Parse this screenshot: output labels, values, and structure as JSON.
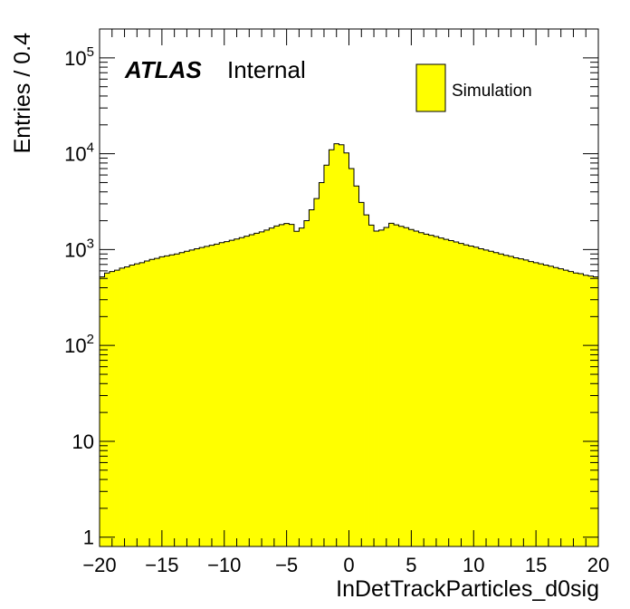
{
  "chart_data": {
    "type": "histogram",
    "title": "",
    "xlabel": "InDetTrackParticles_d0sig",
    "ylabel": "Entries / 0.4",
    "xlim": [
      -20,
      20
    ],
    "ylim": [
      0.8,
      200000
    ],
    "y_scale": "log",
    "bin_width": 0.4,
    "x_ticks": [
      -20,
      -15,
      -10,
      -5,
      0,
      5,
      10,
      15,
      20
    ],
    "x_tick_labels": [
      "−20",
      "−15",
      "−10",
      "−5",
      "0",
      "5",
      "10",
      "15",
      "20"
    ],
    "y_ticks": [
      {
        "value": 1,
        "base": "1",
        "exp": ""
      },
      {
        "value": 10,
        "base": "10",
        "exp": ""
      },
      {
        "value": 100,
        "base": "10",
        "exp": "2"
      },
      {
        "value": 1000,
        "base": "10",
        "exp": "3"
      },
      {
        "value": 10000,
        "base": "10",
        "exp": "4"
      },
      {
        "value": 100000,
        "base": "10",
        "exp": "5"
      }
    ],
    "fill_color": "#ffff00",
    "line_color": "#000000",
    "legend": {
      "position": "top-right",
      "entries": [
        "Simulation"
      ]
    },
    "label": {
      "brand": "ATLAS",
      "status": "Internal"
    },
    "bin_contents": [
      520,
      570,
      590,
      610,
      640,
      660,
      690,
      710,
      730,
      760,
      790,
      810,
      840,
      860,
      880,
      900,
      930,
      960,
      990,
      1020,
      1050,
      1080,
      1110,
      1140,
      1180,
      1210,
      1250,
      1290,
      1330,
      1380,
      1430,
      1480,
      1530,
      1600,
      1680,
      1760,
      1820,
      1870,
      1830,
      1550,
      1680,
      2000,
      2600,
      3400,
      5000,
      7600,
      11000,
      12700,
      12400,
      10200,
      7000,
      4600,
      3100,
      2300,
      1800,
      1560,
      1600,
      1700,
      1880,
      1810,
      1750,
      1690,
      1620,
      1560,
      1500,
      1450,
      1410,
      1370,
      1320,
      1280,
      1240,
      1200,
      1160,
      1120,
      1090,
      1060,
      1020,
      990,
      960,
      930,
      900,
      870,
      850,
      820,
      800,
      780,
      750,
      730,
      710,
      690,
      670,
      650,
      630,
      610,
      590,
      570,
      560,
      540,
      530,
      520
    ]
  }
}
